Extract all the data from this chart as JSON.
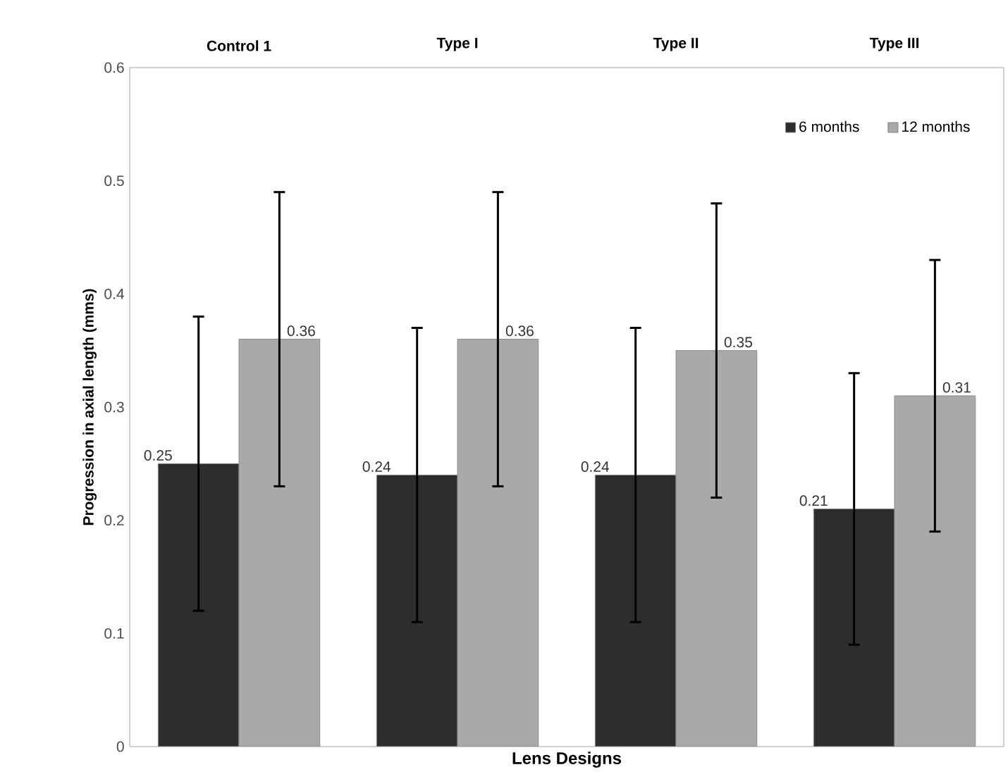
{
  "chart_data": {
    "type": "bar",
    "xlabel": "Lens Designs",
    "ylabel": "Progression in axial length (mms)",
    "categories": [
      "Control 1",
      "Type I",
      "Type II",
      "Type III"
    ],
    "series": [
      {
        "name": "6 months",
        "color": "#2d2d2d",
        "values": [
          0.25,
          0.24,
          0.24,
          0.21
        ],
        "errors": [
          [
            0.12,
            0.38
          ],
          [
            0.11,
            0.37
          ],
          [
            0.11,
            0.37
          ],
          [
            0.09,
            0.33
          ]
        ]
      },
      {
        "name": "12 months",
        "color": "#a9a9a9",
        "values": [
          0.36,
          0.36,
          0.35,
          0.31
        ],
        "errors": [
          [
            0.23,
            0.49
          ],
          [
            0.23,
            0.49
          ],
          [
            0.22,
            0.48
          ],
          [
            0.19,
            0.43
          ]
        ]
      }
    ],
    "ylim": [
      0,
      0.6
    ],
    "yticks": [
      0,
      0.1,
      0.2,
      0.3,
      0.4,
      0.5,
      0.6
    ],
    "data_labels": true,
    "legend": "top right",
    "grid": false
  }
}
